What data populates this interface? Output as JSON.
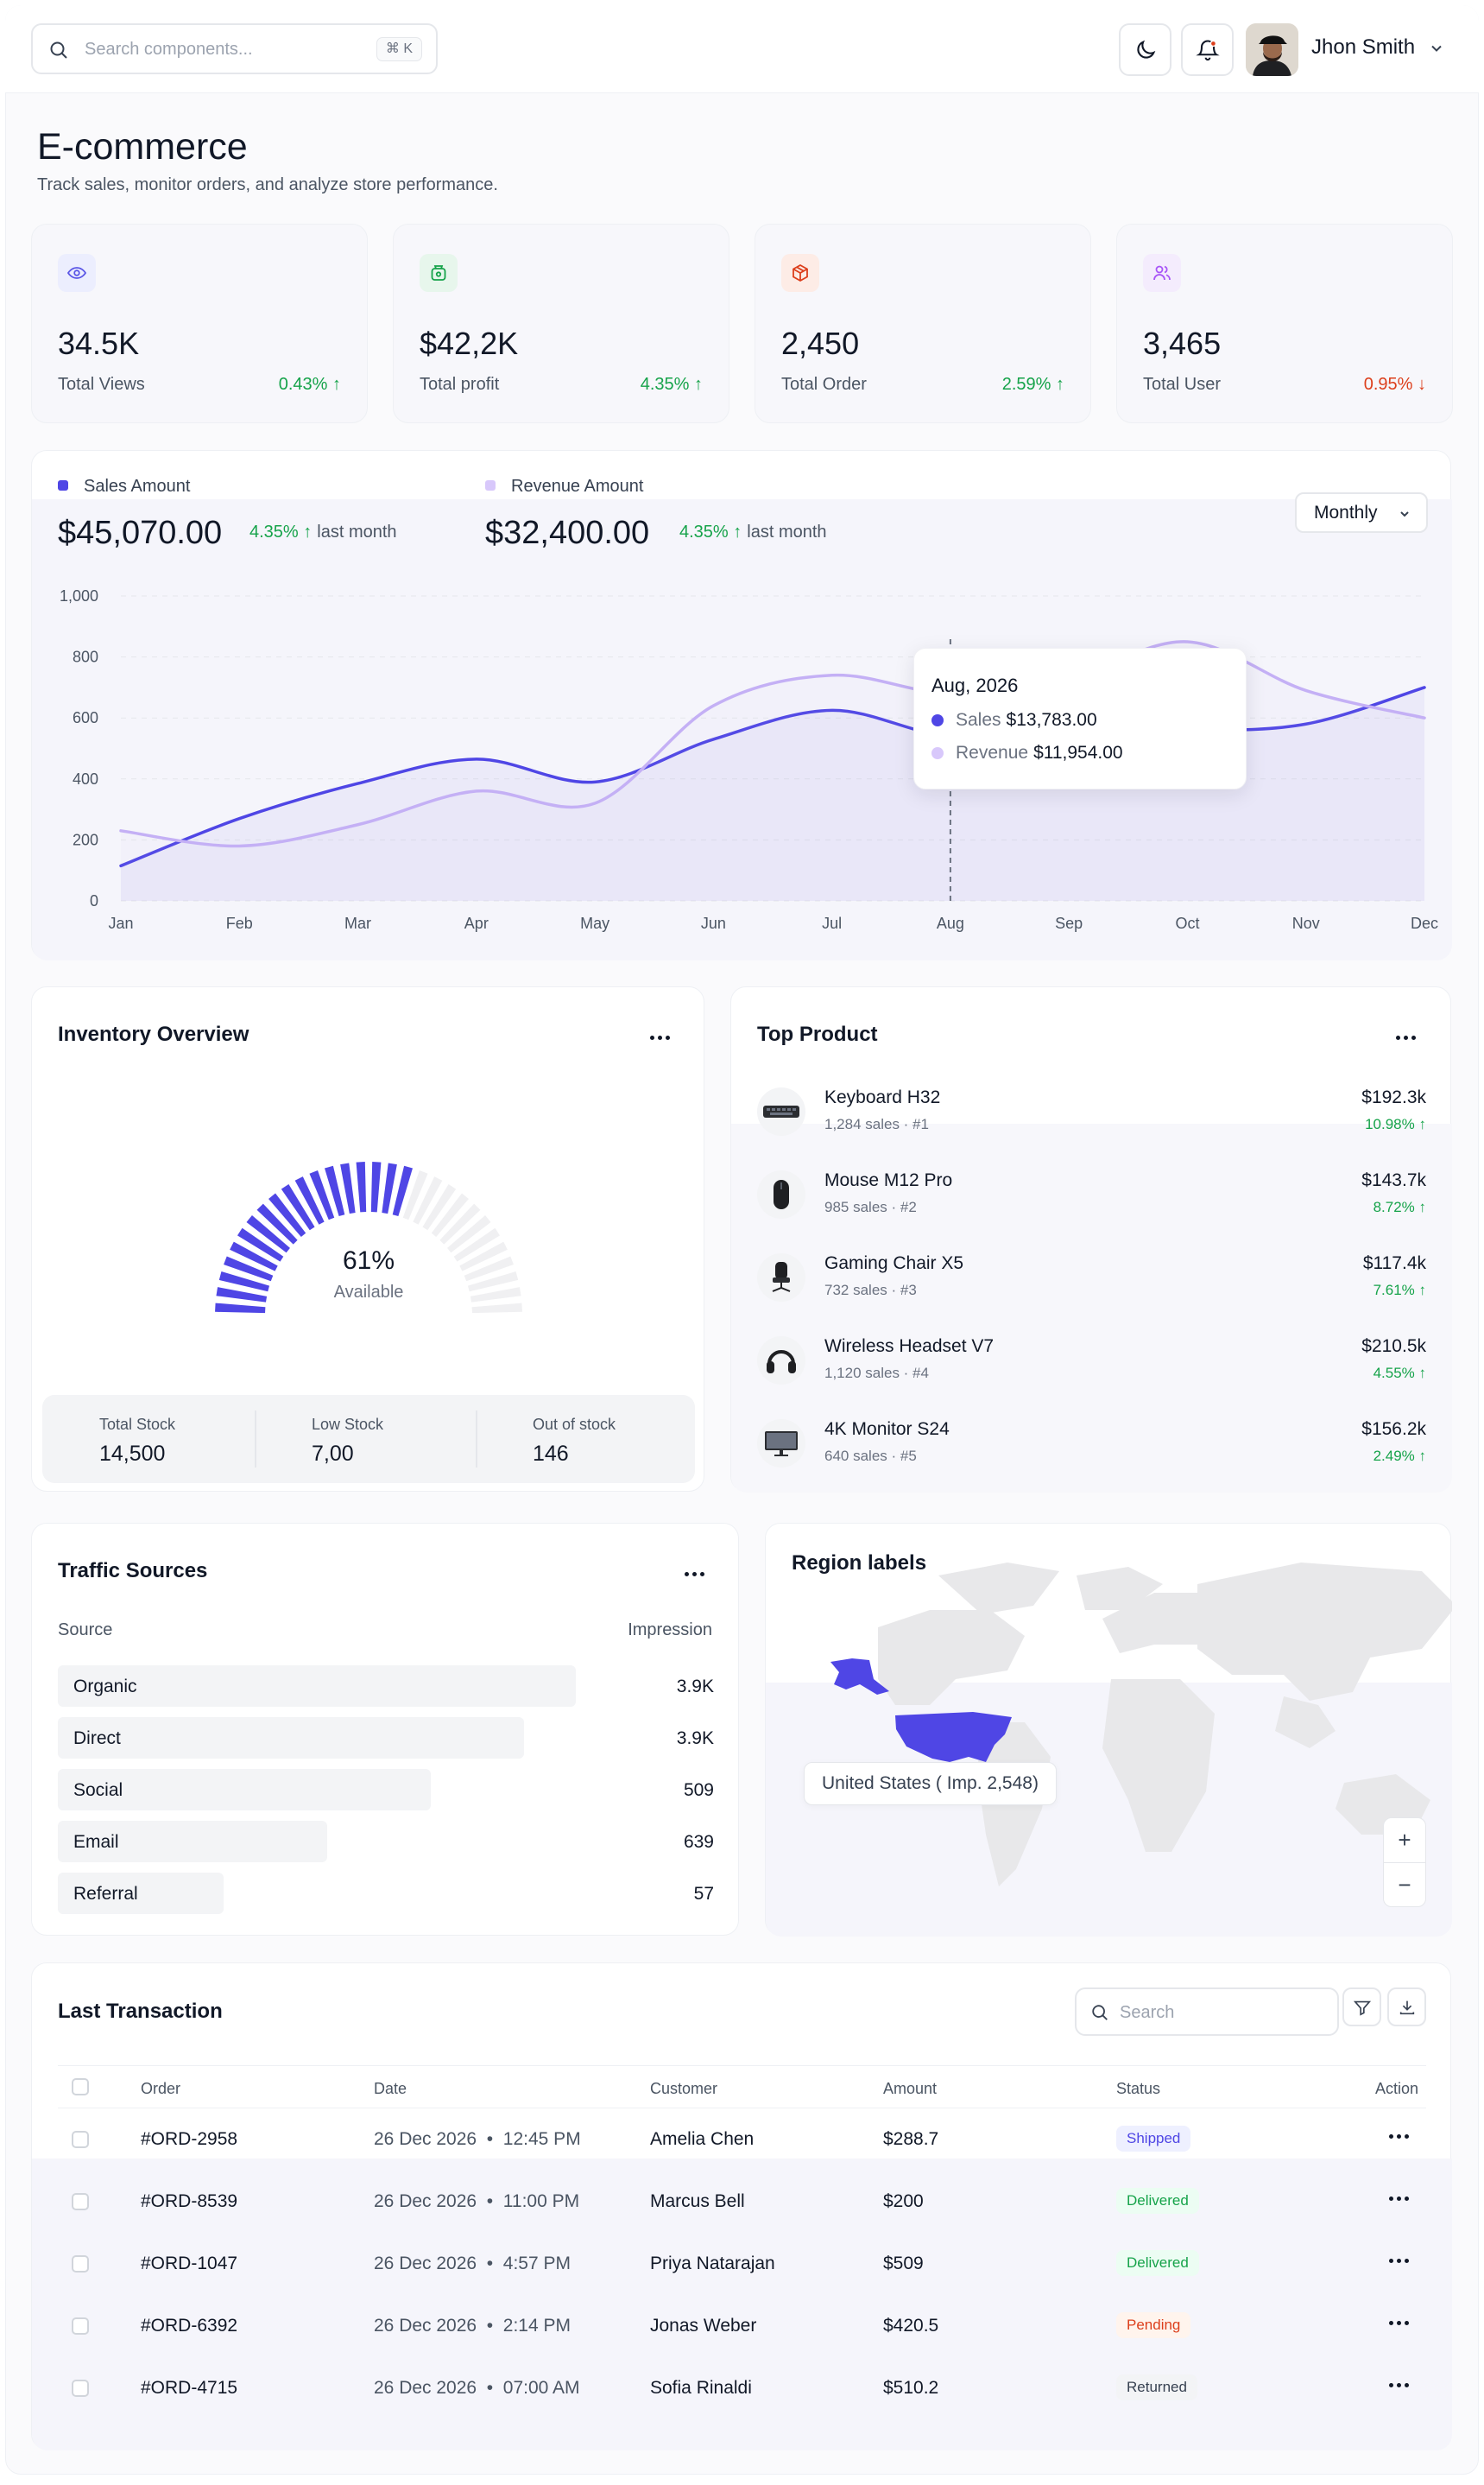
{
  "topbar": {
    "search_placeholder": "Search components...",
    "search_shortcut": "⌘ K",
    "user_name": "Jhon Smith"
  },
  "page": {
    "title": "E-commerce",
    "subtitle": "Track sales, monitor orders, and analyze store performance."
  },
  "stats": [
    {
      "value": "34.5K",
      "label": "Total Views",
      "change": "0.43%",
      "trend": "up",
      "icon": "eye-icon",
      "icon_color": "#5b57e6",
      "icon_bg": "#eceefe"
    },
    {
      "value": "$42,2K",
      "label": "Total profit",
      "change": "4.35%",
      "trend": "up",
      "icon": "money-bag-icon",
      "icon_color": "#16a34a",
      "icon_bg": "#e7f6ec"
    },
    {
      "value": "2,450",
      "label": "Total Order",
      "change": "2.59%",
      "trend": "up",
      "icon": "box-icon",
      "icon_color": "#dc3f1c",
      "icon_bg": "#fdece6"
    },
    {
      "value": "3,465",
      "label": "Total User",
      "change": "0.95%",
      "trend": "down",
      "icon": "users-icon",
      "icon_color": "#a855f7",
      "icon_bg": "#f4ecfd"
    }
  ],
  "sales_chart": {
    "legend_sales": "Sales Amount",
    "legend_revenue": "Revenue Amount",
    "sales_total": "$45,070.00",
    "sales_change": "4.35%",
    "revenue_total": "$32,400.00",
    "revenue_change": "4.35%",
    "last_month": "last month",
    "period_select": "Monthly",
    "tooltip": {
      "title": "Aug, 2026",
      "sales_label": "Sales",
      "sales_value": "$13,783.00",
      "revenue_label": "Revenue",
      "revenue_value": "$11,954.00"
    }
  },
  "chart_data": {
    "type": "line",
    "title": "",
    "xlabel": "",
    "ylabel": "",
    "categories": [
      "Jan",
      "Feb",
      "Mar",
      "Apr",
      "May",
      "Jun",
      "Jul",
      "Aug",
      "Sep",
      "Oct",
      "Nov",
      "Dec"
    ],
    "series": [
      {
        "name": "Sales Amount",
        "color": "#4f46e5",
        "values": [
          115,
          270,
          385,
          465,
          390,
          530,
          625,
          540,
          575,
          560,
          580,
          700
        ]
      },
      {
        "name": "Revenue Amount",
        "color": "#c4b0f5",
        "values": [
          230,
          180,
          250,
          360,
          320,
          640,
          740,
          680,
          730,
          850,
          690,
          600
        ]
      }
    ],
    "ylim": [
      0,
      1000
    ],
    "yticks": [
      "0",
      "200",
      "400",
      "600",
      "800",
      "1,000"
    ],
    "grid": true,
    "highlight_category": "Aug"
  },
  "inventory": {
    "title": "Inventory Overview",
    "gauge_percent": "61%",
    "gauge_label": "Available",
    "gauge_fraction": 0.61,
    "gauge_color": "#4f46e5",
    "total_stock_label": "Total Stock",
    "total_stock": "14,500",
    "low_stock_label": "Low Stock",
    "low_stock": "7,00",
    "out_of_stock_label": "Out of stock",
    "out_of_stock": "146"
  },
  "top_product": {
    "title": "Top Product",
    "items": [
      {
        "name": "Keyboard H32",
        "meta": "1,284 sales · #1",
        "price": "$192.3k",
        "change": "10.98%",
        "icon": "keyboard-icon"
      },
      {
        "name": "Mouse M12 Pro",
        "meta": "985 sales · #2",
        "price": "$143.7k",
        "change": "8.72%",
        "icon": "mouse-icon"
      },
      {
        "name": "Gaming Chair X5",
        "meta": "732 sales · #3",
        "price": "$117.4k",
        "change": "7.61%",
        "icon": "chair-icon"
      },
      {
        "name": "Wireless Headset V7",
        "meta": "1,120 sales · #4",
        "price": "$210.5k",
        "change": "4.55%",
        "icon": "headset-icon"
      },
      {
        "name": "4K Monitor S24",
        "meta": "640 sales · #5",
        "price": "$156.2k",
        "change": "2.49%",
        "icon": "monitor-icon"
      }
    ]
  },
  "traffic": {
    "title": "Traffic Sources",
    "col_source": "Source",
    "col_impression": "Impression",
    "rows": [
      {
        "source": "Organic",
        "impression": "3.9K",
        "share": 1.0
      },
      {
        "source": "Direct",
        "impression": "3.9K",
        "share": 0.9
      },
      {
        "source": "Social",
        "impression": "509",
        "share": 0.72
      },
      {
        "source": "Email",
        "impression": "639",
        "share": 0.52
      },
      {
        "source": "Referral",
        "impression": "57",
        "share": 0.32
      }
    ]
  },
  "region": {
    "title": "Region labels",
    "tooltip": "United States ( Imp. 2,548)",
    "highlight_color": "#4f46e5",
    "zoom_in": "+",
    "zoom_out": "−"
  },
  "transactions": {
    "title": "Last Transaction",
    "search_placeholder": "Search",
    "columns": {
      "order": "Order",
      "date": "Date",
      "customer": "Customer",
      "amount": "Amount",
      "status": "Status",
      "action": "Action"
    },
    "rows": [
      {
        "order": "#ORD-2958",
        "date": "26 Dec 2026",
        "time": "12:45 PM",
        "customer": "Amelia Chen",
        "amount": "$288.7",
        "status": "Shipped",
        "status_type": "shipped"
      },
      {
        "order": "#ORD-8539",
        "date": "26 Dec 2026",
        "time": "11:00 PM",
        "customer": "Marcus Bell",
        "amount": "$200",
        "status": "Delivered",
        "status_type": "delivered"
      },
      {
        "order": "#ORD-1047",
        "date": "26 Dec 2026",
        "time": "4:57 PM",
        "customer": "Priya Natarajan",
        "amount": "$509",
        "status": "Delivered",
        "status_type": "delivered"
      },
      {
        "order": "#ORD-6392",
        "date": "26 Dec 2026",
        "time": "2:14 PM",
        "customer": "Jonas Weber",
        "amount": "$420.5",
        "status": "Pending",
        "status_type": "pending"
      },
      {
        "order": "#ORD-4715",
        "date": "26 Dec 2026",
        "time": "07:00 AM",
        "customer": "Sofia Rinaldi",
        "amount": "$510.2",
        "status": "Returned",
        "status_type": "returned"
      }
    ]
  }
}
